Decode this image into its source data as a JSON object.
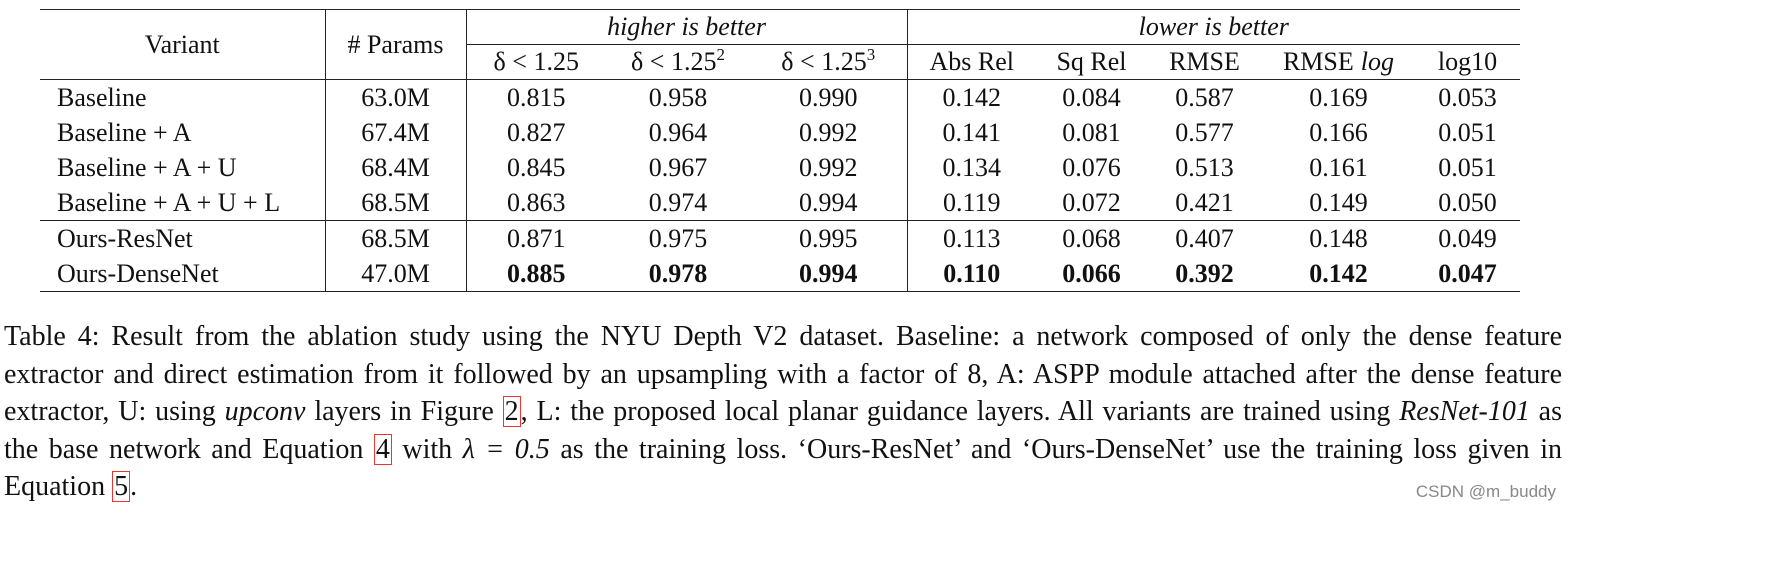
{
  "table": {
    "header": {
      "variant": "Variant",
      "params": "# Params",
      "groups": [
        "higher is better",
        "lower is better"
      ]
    },
    "columns": [
      {
        "text": "δ < 1.25"
      },
      {
        "text": "δ < 1.25",
        "sup": "2"
      },
      {
        "text": "δ < 1.25",
        "sup": "3"
      },
      {
        "text": "Abs Rel"
      },
      {
        "text": "Sq Rel"
      },
      {
        "text": "RMSE"
      },
      {
        "text": "RMSE",
        "em": "log"
      },
      {
        "text": "log10"
      }
    ],
    "rows": [
      [
        "Baseline",
        "63.0M",
        "0.815",
        "0.958",
        "0.990",
        "0.142",
        "0.084",
        "0.587",
        "0.169",
        "0.053"
      ],
      [
        "Baseline + A",
        "67.4M",
        "0.827",
        "0.964",
        "0.992",
        "0.141",
        "0.081",
        "0.577",
        "0.166",
        "0.051"
      ],
      [
        "Baseline + A + U",
        "68.4M",
        "0.845",
        "0.967",
        "0.992",
        "0.134",
        "0.076",
        "0.513",
        "0.161",
        "0.051"
      ],
      [
        "Baseline + A + U + L",
        "68.5M",
        "0.863",
        "0.974",
        "0.994",
        "0.119",
        "0.072",
        "0.421",
        "0.149",
        "0.050"
      ],
      [
        "Ours-ResNet",
        "68.5M",
        "0.871",
        "0.975",
        "0.995",
        "0.113",
        "0.068",
        "0.407",
        "0.148",
        "0.049"
      ],
      [
        "Ours-DenseNet",
        "47.0M",
        "0.885",
        "0.978",
        "0.994",
        "0.110",
        "0.066",
        "0.392",
        "0.142",
        "0.047"
      ]
    ],
    "bold_rows": [
      5
    ],
    "group_break_after": 3
  },
  "caption": [
    "Table 4: Result from the ablation study using the NYU Depth V2 dataset. Baseline: a network composed of only the dense feature extractor and direct estimation from it followed by an upsampling with a factor of 8, A: ASPP module attached after the dense feature extractor, U: using ",
    "upconv",
    " layers in Figure ",
    "2",
    ", L: the proposed local planar guidance layers. All variants are trained using ",
    "ResNet-101",
    " as the base network and Equation ",
    "4",
    " with ",
    "λ = 0.5",
    " as the training loss. ‘Ours-ResNet’ and ‘Ours-DenseNet’ use the training loss given in Equation ",
    "5",
    "."
  ],
  "watermark": "CSDN @m_buddy"
}
